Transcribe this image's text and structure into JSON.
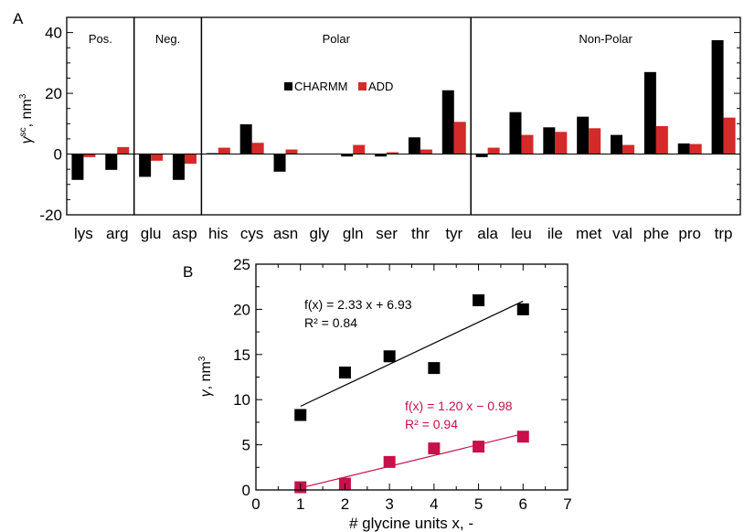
{
  "colors": {
    "charmm": "#000000",
    "add": "#d42a2a",
    "fit_red": "#c8104a"
  },
  "chart_data": [
    {
      "panel": "A",
      "type": "bar",
      "ylabel_symbol": "γ",
      "ylabel_sup": "sc",
      "ylabel_units": ", nm",
      "ylabel_units_sup": "3",
      "ylim": [
        -20,
        45
      ],
      "yticks": [
        -20,
        0,
        20,
        40
      ],
      "categories": [
        "lys",
        "arg",
        "glu",
        "asp",
        "his",
        "cys",
        "asn",
        "gly",
        "gln",
        "ser",
        "thr",
        "tyr",
        "ala",
        "leu",
        "ile",
        "met",
        "val",
        "phe",
        "pro",
        "trp"
      ],
      "groups": [
        {
          "label": "Pos.",
          "start": 0,
          "end": 1
        },
        {
          "label": "Neg.",
          "start": 2,
          "end": 3
        },
        {
          "label": "Polar",
          "start": 4,
          "end": 11
        },
        {
          "label": "Non-Polar",
          "start": 12,
          "end": 19
        }
      ],
      "series": [
        {
          "name": "CHARMM",
          "values": [
            -8.5,
            -5.2,
            -7.5,
            -8.5,
            0.3,
            9.8,
            -5.8,
            0,
            -0.8,
            -0.8,
            5.5,
            21,
            -1,
            13.8,
            8.8,
            12.3,
            6.3,
            27,
            3.5,
            37.5
          ]
        },
        {
          "name": "ADD",
          "values": [
            -1,
            2.3,
            -2.2,
            -3.2,
            2.1,
            3.7,
            1.5,
            0,
            3,
            0.6,
            1.5,
            10.6,
            2.1,
            6.3,
            7.3,
            8.5,
            3,
            9.2,
            3.3,
            12
          ]
        }
      ]
    },
    {
      "panel": "B",
      "type": "scatter",
      "xlabel": "# glycine units x, -",
      "ylabel_symbol": "γ",
      "ylabel_units": ", nm",
      "ylabel_units_sup": "3",
      "xlim": [
        0,
        7
      ],
      "ylim": [
        0,
        25
      ],
      "xticks": [
        0,
        1,
        2,
        3,
        4,
        5,
        6,
        7
      ],
      "yticks": [
        0,
        5,
        10,
        15,
        20,
        25
      ],
      "series": [
        {
          "color": "#000000",
          "points": [
            [
              1,
              8.3
            ],
            [
              2,
              13
            ],
            [
              3,
              14.8
            ],
            [
              4,
              13.5
            ],
            [
              5,
              21
            ],
            [
              6,
              20
            ]
          ],
          "fit": {
            "slope": 2.33,
            "intercept": 6.93,
            "x_range": [
              1,
              6
            ]
          },
          "equation": "f(x) = 2.33 x + 6.93",
          "r2": "R² = 0.84"
        },
        {
          "color": "#c8104a",
          "points": [
            [
              1,
              0.3
            ],
            [
              2,
              0.7
            ],
            [
              3,
              3.1
            ],
            [
              4,
              4.6
            ],
            [
              5,
              4.8
            ],
            [
              6,
              5.9
            ]
          ],
          "fit": {
            "slope": 1.2,
            "intercept": -0.98,
            "x_range": [
              1,
              6
            ]
          },
          "equation": "f(x) = 1.20 x − 0.98",
          "r2": "R² = 0.94"
        }
      ]
    }
  ]
}
